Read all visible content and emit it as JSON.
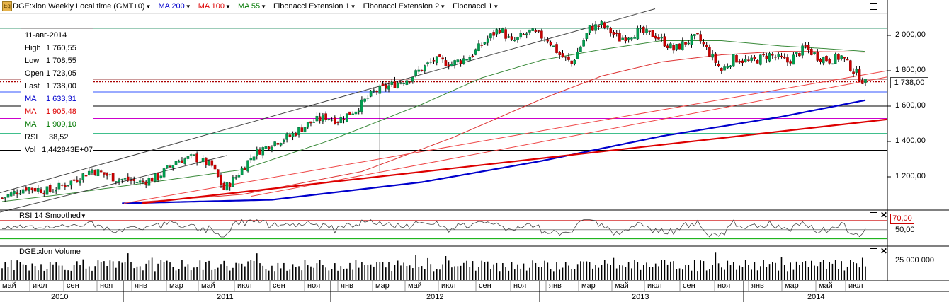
{
  "toolbar": {
    "symbol_icon": "Eq",
    "title": "DGE:xlon Weekly Local time (GMT+0)",
    "items": [
      {
        "label": "MA 200",
        "color": "#0000cc"
      },
      {
        "label": "MA 100",
        "color": "#dd0000"
      },
      {
        "label": "MA 55",
        "color": "#007700"
      },
      {
        "label": "Fibonacci Extension 1",
        "color": "#000000"
      },
      {
        "label": "Fibonacci Extension 2",
        "color": "#000000"
      },
      {
        "label": "Fibonacci 1",
        "color": "#000000"
      }
    ]
  },
  "info": {
    "date": "11-авг-2014",
    "rows": [
      {
        "key": "High",
        "value": "1 760,55",
        "color": "#000000"
      },
      {
        "key": "Low",
        "value": "1 708,55",
        "color": "#000000"
      },
      {
        "key": "Open",
        "value": "1 723,05",
        "color": "#000000"
      },
      {
        "key": "Last",
        "value": "1 738,00",
        "color": "#000000"
      },
      {
        "key": "MA",
        "value": "1 633,31",
        "color": "#0000cc"
      },
      {
        "key": "MA",
        "value": "1 905,48",
        "color": "#dd0000"
      },
      {
        "key": "MA",
        "value": "1 909,10",
        "color": "#007700"
      },
      {
        "key": "RSI",
        "value": "38,52",
        "color": "#000000"
      },
      {
        "key": "Vol",
        "value": "1,442843E+07",
        "color": "#000000"
      }
    ]
  },
  "price_box": "1 738,00",
  "rsi_panel": {
    "title": "RSI 14 Smoothed",
    "level_box": "70,00",
    "tick": "50,00"
  },
  "volume_panel": {
    "title": "DGE:xlon Volume",
    "tick": "25 000 000"
  },
  "chart_data": {
    "type": "candlestick",
    "title": "DGE:xlon Weekly",
    "y_ticks": [
      "2 000,00",
      "1 800,00",
      "1 600,00",
      "1 400,00",
      "1 200,00"
    ],
    "y_tick_values": [
      2000,
      1800,
      1600,
      1400,
      1200
    ],
    "ylim": [
      1050,
      2150
    ],
    "last_price": 1738,
    "months": [
      "май",
      "июл",
      "сен",
      "ноя",
      "янв",
      "мар",
      "май",
      "июл",
      "сен",
      "ноя",
      "янв",
      "мар",
      "май",
      "июл",
      "сен",
      "ноя",
      "янв",
      "мар",
      "май",
      "июл",
      "сен",
      "ноя",
      "янв",
      "мар",
      "май",
      "июл"
    ],
    "years": [
      "2010",
      "2011",
      "2012",
      "2013",
      "2014"
    ],
    "close_anchors": [
      [
        0,
        1080
      ],
      [
        8,
        1140
      ],
      [
        16,
        1120
      ],
      [
        24,
        1180
      ],
      [
        30,
        1240
      ],
      [
        38,
        1190
      ],
      [
        46,
        1170
      ],
      [
        52,
        1200
      ],
      [
        58,
        1290
      ],
      [
        64,
        1310
      ],
      [
        70,
        1260
      ],
      [
        74,
        1130
      ],
      [
        78,
        1200
      ],
      [
        84,
        1330
      ],
      [
        90,
        1390
      ],
      [
        96,
        1430
      ],
      [
        102,
        1500
      ],
      [
        108,
        1540
      ],
      [
        112,
        1520
      ],
      [
        118,
        1580
      ],
      [
        124,
        1680
      ],
      [
        130,
        1720
      ],
      [
        136,
        1760
      ],
      [
        144,
        1860
      ],
      [
        150,
        1840
      ],
      [
        156,
        1880
      ],
      [
        162,
        1980
      ],
      [
        166,
        2040
      ],
      [
        170,
        1960
      ],
      [
        176,
        2020
      ],
      [
        182,
        1980
      ],
      [
        186,
        1890
      ],
      [
        190,
        1840
      ],
      [
        196,
        2040
      ],
      [
        200,
        2060
      ],
      [
        206,
        1980
      ],
      [
        212,
        2020
      ],
      [
        218,
        2000
      ],
      [
        224,
        1920
      ],
      [
        228,
        1960
      ],
      [
        232,
        1990
      ],
      [
        236,
        1900
      ],
      [
        240,
        1800
      ],
      [
        244,
        1870
      ],
      [
        250,
        1850
      ],
      [
        256,
        1890
      ],
      [
        262,
        1850
      ],
      [
        268,
        1930
      ],
      [
        272,
        1880
      ],
      [
        276,
        1860
      ],
      [
        280,
        1880
      ],
      [
        284,
        1800
      ],
      [
        288,
        1730
      ]
    ],
    "ma200_anchors": [
      [
        40,
        1050
      ],
      [
        90,
        1070
      ],
      [
        140,
        1170
      ],
      [
        180,
        1290
      ],
      [
        220,
        1430
      ],
      [
        260,
        1540
      ],
      [
        288,
        1633.31
      ]
    ],
    "ma100_anchors": [
      [
        40,
        1050
      ],
      [
        80,
        1100
      ],
      [
        120,
        1230
      ],
      [
        150,
        1420
      ],
      [
        180,
        1640
      ],
      [
        200,
        1770
      ],
      [
        220,
        1850
      ],
      [
        240,
        1890
      ],
      [
        260,
        1910
      ],
      [
        288,
        1905.48
      ]
    ],
    "ma55_anchors": [
      [
        0,
        1060
      ],
      [
        20,
        1100
      ],
      [
        50,
        1170
      ],
      [
        80,
        1240
      ],
      [
        110,
        1410
      ],
      [
        140,
        1610
      ],
      [
        160,
        1760
      ],
      [
        180,
        1860
      ],
      [
        200,
        1920
      ],
      [
        220,
        1970
      ],
      [
        240,
        1970
      ],
      [
        260,
        1940
      ],
      [
        275,
        1925
      ],
      [
        288,
        1909.1
      ]
    ],
    "weeks": 289,
    "horizontal_levels": [
      {
        "value": 2040,
        "color": "#3a9a70"
      },
      {
        "value": 1810,
        "color": "#888888"
      },
      {
        "value": 1750,
        "color": "#cc9a9a"
      },
      {
        "value": 1680,
        "color": "#3355ff"
      },
      {
        "value": 1600,
        "color": "#000000"
      },
      {
        "value": 1530,
        "color": "#cc00cc"
      },
      {
        "value": 1445,
        "color": "#00aa66"
      },
      {
        "value": 1350,
        "color": "#000000"
      }
    ],
    "rsi_levels": [
      70,
      50,
      30
    ],
    "volume_tick": 25000000
  }
}
